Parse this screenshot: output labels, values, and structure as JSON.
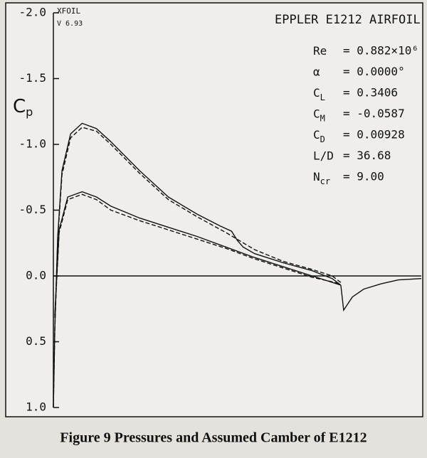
{
  "chart_data": {
    "type": "line",
    "program": "XFOIL",
    "version": "V 6.93",
    "title": "EPPLER E1212 AIRFOIL",
    "y_label": {
      "text": "C",
      "subscript": "p"
    },
    "parameters": [
      {
        "symbol": "Re",
        "value": "= 0.882×10⁶"
      },
      {
        "symbol": "α",
        "value": "= 0.0000°"
      },
      {
        "symbol": "C",
        "subscript": "L",
        "value": "= 0.3406"
      },
      {
        "symbol": "C",
        "subscript": "M",
        "value": "= -0.0587"
      },
      {
        "symbol": "C",
        "subscript": "D",
        "value": "= 0.00928"
      },
      {
        "symbol": "L/D",
        "value": "= 36.68"
      },
      {
        "symbol": "N",
        "subscript": "cr",
        "value": "= 9.00"
      }
    ],
    "caption": "Figure 9 Pressures and Assumed Camber of E1212",
    "xlim": [
      0,
      1.28
    ],
    "ylim": [
      -2.0,
      1.0
    ],
    "y_inverted": true,
    "yticks": [
      {
        "value": -2.0,
        "label": "-2.0"
      },
      -1.5,
      {
        "value": -1.0,
        "label": "-1.0"
      },
      -0.5,
      {
        "value": 0.0,
        "label": "0.0"
      },
      0.5,
      {
        "value": 1.0,
        "label": "1.0"
      }
    ],
    "series": [
      {
        "color": "#111111",
        "dash": false,
        "x": [
          0.0,
          0.005,
          0.015,
          0.03,
          0.06,
          0.1,
          0.15,
          0.2,
          0.3,
          0.4,
          0.5,
          0.58,
          0.62,
          0.64,
          0.66,
          0.7,
          0.8,
          0.9,
          0.97,
          1.0
        ],
        "values": [
          1.0,
          0.4,
          -0.3,
          -0.8,
          -1.08,
          -1.16,
          -1.12,
          -1.02,
          -0.8,
          -0.6,
          -0.47,
          -0.38,
          -0.34,
          -0.27,
          -0.22,
          -0.17,
          -0.1,
          -0.04,
          0.02,
          0.07
        ]
      },
      {
        "color": "#111111",
        "dash": true,
        "x": [
          0.0,
          0.005,
          0.015,
          0.03,
          0.06,
          0.1,
          0.15,
          0.2,
          0.3,
          0.4,
          0.5,
          0.6,
          0.7,
          0.8,
          0.9,
          0.97,
          1.0
        ],
        "values": [
          1.0,
          0.42,
          -0.28,
          -0.77,
          -1.05,
          -1.13,
          -1.1,
          -1.0,
          -0.78,
          -0.58,
          -0.45,
          -0.33,
          -0.2,
          -0.11,
          -0.05,
          0.0,
          0.05
        ]
      },
      {
        "color": "#111111",
        "dash": false,
        "x": [
          0.005,
          0.02,
          0.05,
          0.1,
          0.15,
          0.2,
          0.3,
          0.4,
          0.5,
          0.6,
          0.7,
          0.8,
          0.9,
          1.0
        ],
        "values": [
          0.3,
          -0.35,
          -0.6,
          -0.64,
          -0.6,
          -0.53,
          -0.44,
          -0.37,
          -0.3,
          -0.22,
          -0.14,
          -0.07,
          0.0,
          0.07
        ]
      },
      {
        "color": "#111111",
        "dash": true,
        "x": [
          0.005,
          0.02,
          0.05,
          0.1,
          0.15,
          0.2,
          0.3,
          0.4,
          0.5,
          0.6,
          0.7,
          0.8,
          0.9,
          1.0
        ],
        "values": [
          0.32,
          -0.33,
          -0.58,
          -0.62,
          -0.58,
          -0.5,
          -0.42,
          -0.35,
          -0.28,
          -0.21,
          -0.13,
          -0.06,
          0.01,
          0.06
        ]
      },
      {
        "color": "#111111",
        "dash": false,
        "x": [
          1.0,
          1.01,
          1.04,
          1.08,
          1.14,
          1.2,
          1.28
        ],
        "values": [
          0.07,
          0.26,
          0.16,
          0.1,
          0.06,
          0.03,
          0.02
        ]
      }
    ]
  }
}
